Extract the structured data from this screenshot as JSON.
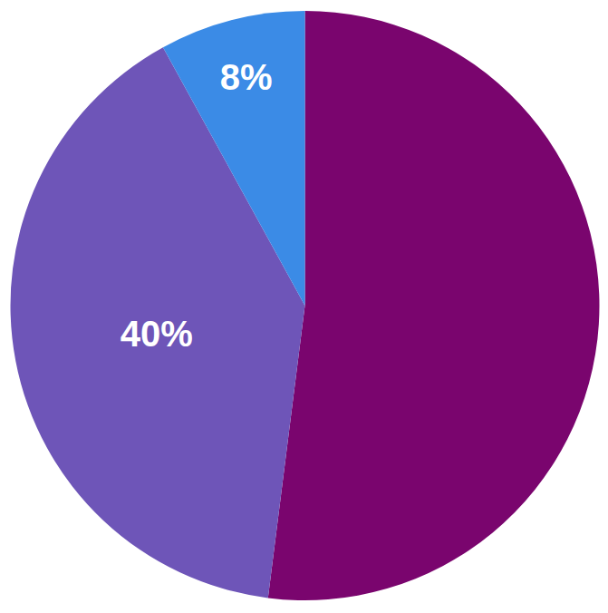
{
  "chart_data": {
    "type": "pie",
    "values": [
      52,
      40,
      8
    ],
    "value_labels": [
      null,
      "40%",
      "8%"
    ],
    "colors": [
      "#7a056e",
      "#6e55b8",
      "#3b8be6"
    ],
    "data_labels": true
  }
}
